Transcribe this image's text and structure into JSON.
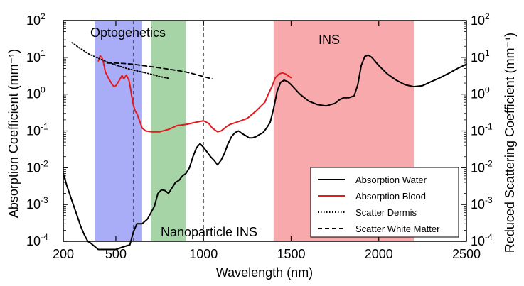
{
  "chart_data": {
    "type": "line",
    "xlabel": "Wavelength (nm)",
    "ylabel_left": "Absorption Coefficient (mm⁻¹)",
    "ylabel_right": "Reduced Scattering Coefficient (mm⁻¹)",
    "xlim": [
      200,
      2500
    ],
    "ylim": [
      0.0001,
      100
    ],
    "yscale": "log",
    "x_ticks": [
      200,
      500,
      1000,
      1500,
      2000,
      2500
    ],
    "y_ticks": [
      {
        "value": 0.0001,
        "base": "10",
        "exp": "-4"
      },
      {
        "value": 0.001,
        "base": "10",
        "exp": "-3"
      },
      {
        "value": 0.01,
        "base": "10",
        "exp": "-2"
      },
      {
        "value": 0.1,
        "base": "10",
        "exp": "-1"
      },
      {
        "value": 1,
        "base": "10",
        "exp": "0"
      },
      {
        "value": 10,
        "base": "10",
        "exp": "1"
      },
      {
        "value": 100,
        "base": "10",
        "exp": "2"
      }
    ],
    "bands": [
      {
        "name": "optogenetics",
        "label": "Optogenetics",
        "x": [
          380,
          650
        ],
        "color": "#a9adf8"
      },
      {
        "name": "nanoparticle-ins",
        "label": "Nanoparticle INS",
        "x": [
          700,
          900
        ],
        "color": "#a6d4a6"
      },
      {
        "name": "ins",
        "label": "INS",
        "x": [
          1400,
          2200
        ],
        "color": "#f7a9ab"
      }
    ],
    "vlines": [
      600,
      1000
    ],
    "legend_position": "bottom-right",
    "series": [
      {
        "name": "Absorption Water",
        "color": "#000000",
        "style": "solid",
        "points": [
          [
            200,
            0.007
          ],
          [
            220,
            0.0033
          ],
          [
            240,
            0.0017
          ],
          [
            260,
            0.0009
          ],
          [
            280,
            0.00048
          ],
          [
            300,
            0.00025
          ],
          [
            320,
            0.00015
          ],
          [
            340,
            0.0001
          ],
          [
            355,
            9e-05
          ],
          [
            400,
            6e-05
          ],
          [
            450,
            6e-05
          ],
          [
            500,
            6e-05
          ],
          [
            540,
            7e-05
          ],
          [
            580,
            8e-05
          ],
          [
            600,
            0.00018
          ],
          [
            620,
            0.0003
          ],
          [
            650,
            0.0003
          ],
          [
            680,
            0.0004
          ],
          [
            700,
            0.0006
          ],
          [
            720,
            0.0009
          ],
          [
            740,
            0.002
          ],
          [
            760,
            0.0025
          ],
          [
            780,
            0.0024
          ],
          [
            800,
            0.002
          ],
          [
            820,
            0.0028
          ],
          [
            840,
            0.004
          ],
          [
            860,
            0.0045
          ],
          [
            880,
            0.006
          ],
          [
            900,
            0.007
          ],
          [
            920,
            0.01
          ],
          [
            940,
            0.02
          ],
          [
            960,
            0.035
          ],
          [
            980,
            0.045
          ],
          [
            1000,
            0.036
          ],
          [
            1020,
            0.027
          ],
          [
            1040,
            0.02
          ],
          [
            1060,
            0.016
          ],
          [
            1080,
            0.012
          ],
          [
            1100,
            0.016
          ],
          [
            1120,
            0.025
          ],
          [
            1140,
            0.045
          ],
          [
            1160,
            0.07
          ],
          [
            1180,
            0.09
          ],
          [
            1200,
            0.1
          ],
          [
            1220,
            0.085
          ],
          [
            1240,
            0.075
          ],
          [
            1260,
            0.065
          ],
          [
            1280,
            0.065
          ],
          [
            1300,
            0.07
          ],
          [
            1320,
            0.08
          ],
          [
            1340,
            0.09
          ],
          [
            1360,
            0.12
          ],
          [
            1380,
            0.17
          ],
          [
            1400,
            0.4
          ],
          [
            1420,
            1.2
          ],
          [
            1440,
            2.1
          ],
          [
            1460,
            2.4
          ],
          [
            1480,
            2.2
          ],
          [
            1500,
            1.8
          ],
          [
            1550,
            1.0
          ],
          [
            1600,
            0.65
          ],
          [
            1650,
            0.52
          ],
          [
            1700,
            0.48
          ],
          [
            1750,
            0.56
          ],
          [
            1775,
            0.7
          ],
          [
            1800,
            0.8
          ],
          [
            1830,
            0.8
          ],
          [
            1860,
            0.9
          ],
          [
            1880,
            1.8
          ],
          [
            1900,
            6.0
          ],
          [
            1920,
            10.5
          ],
          [
            1940,
            11.5
          ],
          [
            1960,
            10.0
          ],
          [
            2000,
            6.0
          ],
          [
            2050,
            3.5
          ],
          [
            2100,
            2.4
          ],
          [
            2150,
            1.8
          ],
          [
            2200,
            1.6
          ],
          [
            2250,
            1.7
          ],
          [
            2300,
            2.2
          ],
          [
            2350,
            2.8
          ],
          [
            2400,
            3.7
          ],
          [
            2450,
            5.0
          ],
          [
            2500,
            6.5
          ]
        ]
      },
      {
        "name": "Absorption Blood",
        "color": "#e41a1c",
        "style": "solid",
        "points": [
          [
            400,
            8.0
          ],
          [
            410,
            11.0
          ],
          [
            420,
            10.0
          ],
          [
            430,
            7.0
          ],
          [
            440,
            4.0
          ],
          [
            460,
            2.6
          ],
          [
            480,
            1.8
          ],
          [
            490,
            1.6
          ],
          [
            500,
            1.7
          ],
          [
            520,
            2.4
          ],
          [
            535,
            3.2
          ],
          [
            545,
            2.6
          ],
          [
            560,
            3.3
          ],
          [
            575,
            2.4
          ],
          [
            585,
            1.3
          ],
          [
            590,
            0.9
          ],
          [
            595,
            0.7
          ],
          [
            600,
            0.5
          ],
          [
            610,
            0.35
          ],
          [
            620,
            0.3
          ],
          [
            630,
            0.22
          ],
          [
            650,
            0.12
          ],
          [
            670,
            0.1
          ],
          [
            700,
            0.095
          ],
          [
            750,
            0.095
          ],
          [
            800,
            0.11
          ],
          [
            850,
            0.14
          ],
          [
            900,
            0.15
          ],
          [
            950,
            0.17
          ],
          [
            1000,
            0.19
          ],
          [
            1030,
            0.16
          ],
          [
            1050,
            0.12
          ],
          [
            1080,
            0.095
          ],
          [
            1100,
            0.1
          ],
          [
            1130,
            0.13
          ],
          [
            1150,
            0.15
          ],
          [
            1200,
            0.18
          ],
          [
            1250,
            0.22
          ],
          [
            1300,
            0.35
          ],
          [
            1350,
            0.6
          ],
          [
            1370,
            1.0
          ],
          [
            1390,
            1.6
          ],
          [
            1410,
            2.8
          ],
          [
            1430,
            3.5
          ],
          [
            1450,
            3.8
          ],
          [
            1470,
            3.5
          ],
          [
            1490,
            3.0
          ],
          [
            1500,
            2.8
          ]
        ]
      },
      {
        "name": "Scatter Dermis",
        "color": "#000000",
        "style": "dotted",
        "points": [
          [
            250,
            25
          ],
          [
            300,
            17
          ],
          [
            350,
            12
          ],
          [
            400,
            9.5
          ],
          [
            450,
            7.5
          ],
          [
            500,
            6.2
          ],
          [
            550,
            5.2
          ],
          [
            600,
            4.5
          ],
          [
            650,
            4.0
          ],
          [
            700,
            3.5
          ],
          [
            750,
            3.0
          ],
          [
            800,
            2.7
          ]
        ]
      },
      {
        "name": "Scatter White Matter",
        "color": "#000000",
        "style": "dashed",
        "points": [
          [
            450,
            7.0
          ],
          [
            500,
            7.0
          ],
          [
            550,
            6.8
          ],
          [
            600,
            6.5
          ],
          [
            650,
            6.0
          ],
          [
            700,
            5.6
          ],
          [
            750,
            5.2
          ],
          [
            800,
            4.8
          ],
          [
            850,
            4.4
          ],
          [
            900,
            4.0
          ],
          [
            950,
            3.5
          ],
          [
            1000,
            3.0
          ],
          [
            1050,
            2.6
          ]
        ]
      }
    ]
  }
}
